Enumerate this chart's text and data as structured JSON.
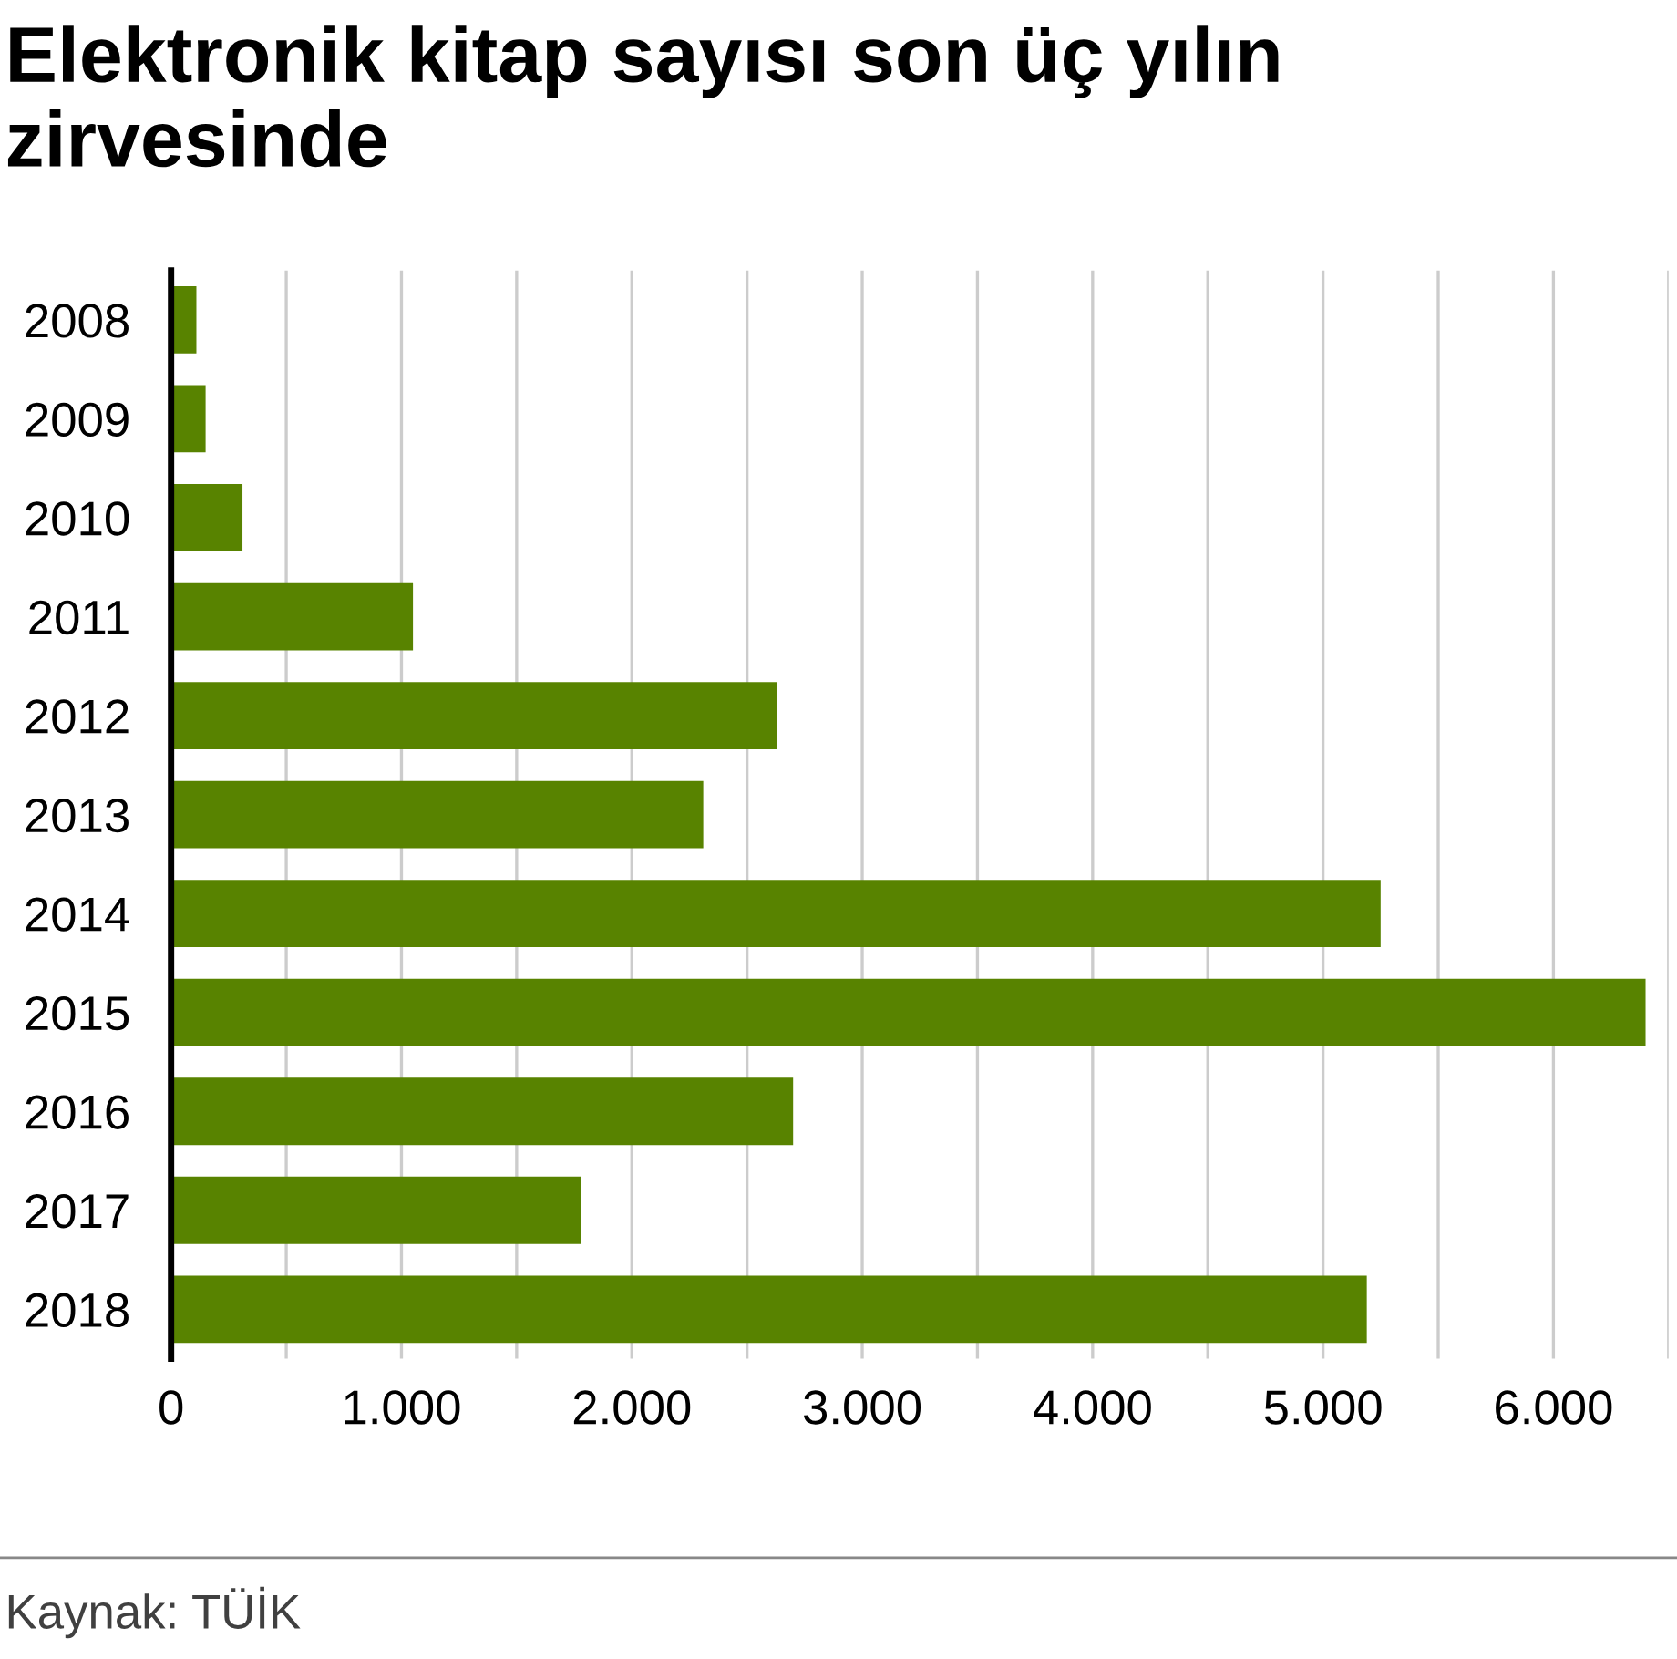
{
  "chart_data": {
    "type": "bar",
    "orientation": "horizontal",
    "title": "Elektronik kitap sayısı son üç yılın zirvesinde",
    "categories": [
      "2008",
      "2009",
      "2010",
      "2011",
      "2012",
      "2013",
      "2014",
      "2015",
      "2016",
      "2017",
      "2018"
    ],
    "values": [
      110,
      150,
      310,
      1050,
      2630,
      2310,
      5250,
      6400,
      2700,
      1780,
      5190
    ],
    "color": "#588300",
    "xlim": [
      0,
      6500
    ],
    "xticks": [
      0,
      {
        "value": 500,
        "label": null
      },
      {
        "value": 1000,
        "label": "1.000"
      },
      {
        "value": 1500,
        "label": null
      },
      {
        "value": 2000,
        "label": "2.000"
      },
      {
        "value": 2500,
        "label": null
      },
      {
        "value": 3000,
        "label": "3.000"
      },
      {
        "value": 3500,
        "label": null
      },
      {
        "value": 4000,
        "label": "4.000"
      },
      {
        "value": 4500,
        "label": null
      },
      {
        "value": 5000,
        "label": "5.000"
      },
      {
        "value": 5500,
        "label": null
      },
      {
        "value": 6000,
        "label": "6.000"
      },
      {
        "value": 6500,
        "label": null
      }
    ],
    "grid": "x",
    "annotations": [
      "Kaynak: TÜİK"
    ]
  }
}
